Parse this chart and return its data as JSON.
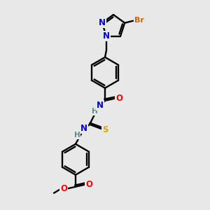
{
  "background_color": "#e8e8e8",
  "bond_color": "#000000",
  "atom_colors": {
    "N": "#0000cc",
    "O": "#ff0000",
    "S": "#ccaa00",
    "Br": "#cc6600",
    "H": "#5b8a8a",
    "C": "#000000"
  },
  "figsize": [
    3.0,
    3.0
  ],
  "dpi": 100
}
